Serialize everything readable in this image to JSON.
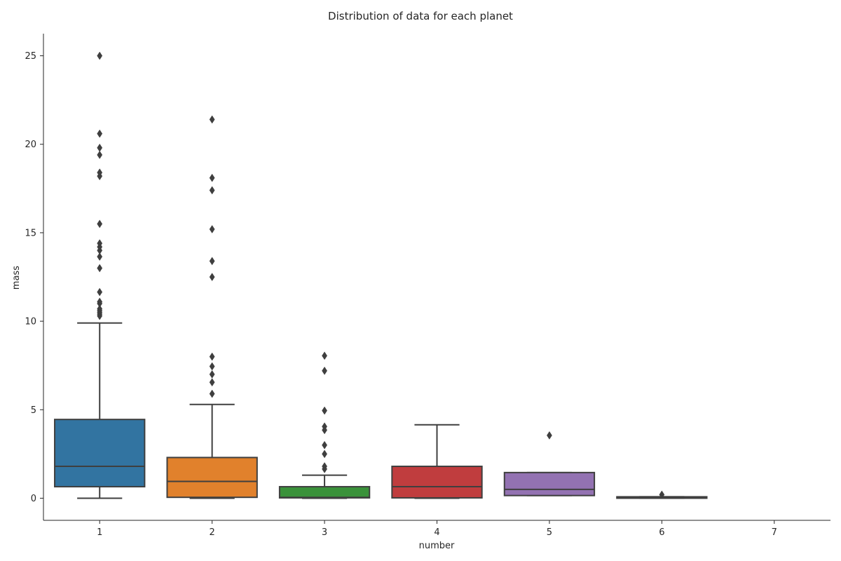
{
  "chart_data": {
    "type": "box",
    "title": "Distribution of data for each planet",
    "xlabel": "number",
    "ylabel": "mass",
    "ylim": [
      -1.25,
      26.25
    ],
    "yticks": [
      0,
      5,
      10,
      15,
      20,
      25
    ],
    "ytick_labels": [
      "0",
      "5",
      "10",
      "15",
      "20",
      "25"
    ],
    "categories": [
      "1",
      "2",
      "3",
      "4",
      "5",
      "6",
      "7"
    ],
    "grid": false,
    "line_color": "#3f3f3f",
    "boxes": [
      {
        "category": "1",
        "color": "#3274a1",
        "whisker_low": 0.0,
        "q1": 0.65,
        "median": 1.8,
        "q3": 4.45,
        "whisker_high": 9.9,
        "outliers": [
          10.3,
          10.4,
          10.5,
          10.6,
          10.7,
          11.0,
          11.1,
          11.65,
          13.0,
          13.65,
          14.0,
          14.2,
          14.4,
          15.5,
          18.2,
          18.4,
          19.4,
          19.8,
          20.6,
          25.0
        ]
      },
      {
        "category": "2",
        "color": "#e1812c",
        "whisker_low": 0.0,
        "q1": 0.05,
        "median": 0.95,
        "q3": 2.3,
        "whisker_high": 5.3,
        "outliers": [
          5.9,
          6.55,
          7.0,
          7.45,
          8.0,
          12.5,
          13.4,
          15.2,
          17.4,
          18.1,
          21.4
        ]
      },
      {
        "category": "3",
        "color": "#3a923a",
        "whisker_low": 0.0,
        "q1": 0.02,
        "median": 0.05,
        "q3": 0.65,
        "whisker_high": 1.3,
        "outliers": [
          1.65,
          1.8,
          2.5,
          3.0,
          3.85,
          4.05,
          4.95,
          7.2,
          8.05
        ]
      },
      {
        "category": "4",
        "color": "#c03d3e",
        "whisker_low": 0.0,
        "q1": 0.02,
        "median": 0.65,
        "q3": 1.8,
        "whisker_high": 4.15,
        "outliers": []
      },
      {
        "category": "5",
        "color": "#9372b2",
        "whisker_low": 0.15,
        "q1": 0.15,
        "median": 0.5,
        "q3": 1.45,
        "whisker_high": 1.45,
        "outliers": [
          3.55
        ]
      },
      {
        "category": "6",
        "color": "#845b53",
        "whisker_low": 0.0,
        "q1": 0.0,
        "median": 0.02,
        "q3": 0.08,
        "whisker_high": 0.08,
        "outliers": [
          0.2
        ]
      },
      {
        "category": "7",
        "color": "#d684bd",
        "whisker_low": null,
        "q1": null,
        "median": null,
        "q3": null,
        "whisker_high": null,
        "outliers": []
      }
    ]
  }
}
